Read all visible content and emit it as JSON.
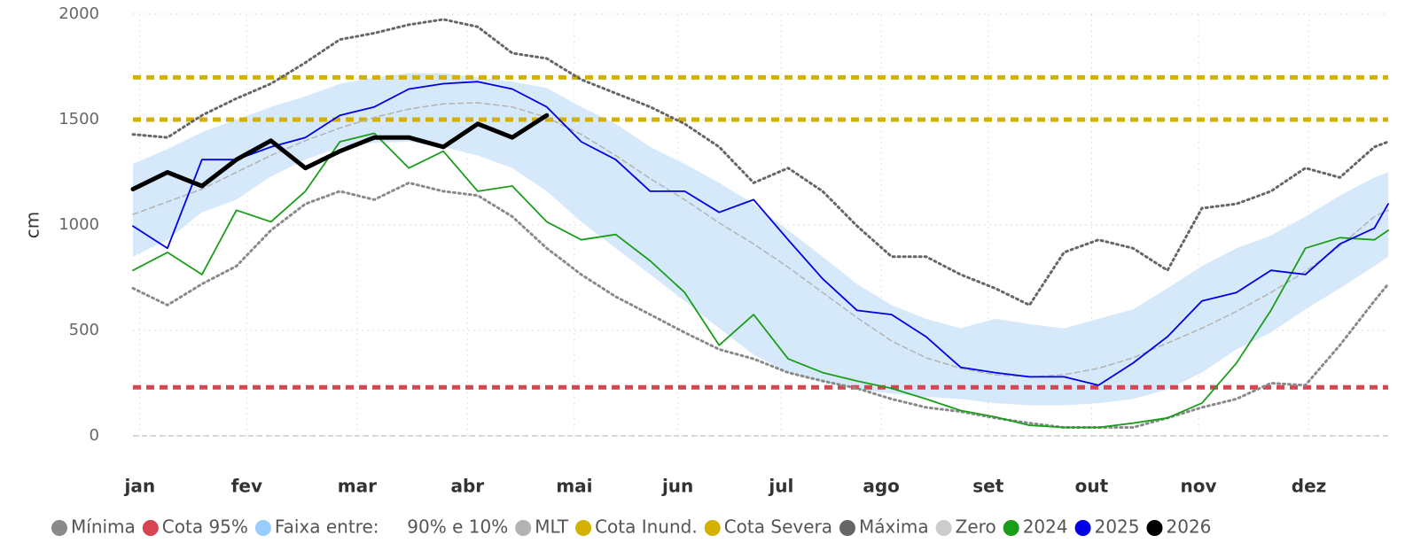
{
  "chart_data": {
    "type": "line",
    "y_label": "cm",
    "xlim": [
      1,
      365
    ],
    "xticks": [
      {
        "value": 3,
        "label": "jan"
      },
      {
        "value": 34,
        "label": "fev"
      },
      {
        "value": 66,
        "label": "mar"
      },
      {
        "value": 98,
        "label": "abr"
      },
      {
        "value": 129,
        "label": "mai"
      },
      {
        "value": 159,
        "label": "jun"
      },
      {
        "value": 189,
        "label": "jul"
      },
      {
        "value": 218,
        "label": "ago"
      },
      {
        "value": 249,
        "label": "set"
      },
      {
        "value": 279,
        "label": "out"
      },
      {
        "value": 310,
        "label": "nov"
      },
      {
        "value": 342,
        "label": "dez"
      }
    ],
    "ylim": [
      0,
      2000
    ],
    "yticks": [
      0,
      500,
      1000,
      1500,
      2000
    ],
    "grid": true,
    "legend": "bottom",
    "x": [
      1,
      11,
      21,
      31,
      41,
      51,
      61,
      71,
      81,
      91,
      101,
      111,
      121,
      131,
      141,
      151,
      161,
      171,
      181,
      191,
      201,
      211,
      221,
      231,
      241,
      251,
      261,
      271,
      281,
      291,
      301,
      311,
      321,
      331,
      341,
      351,
      361,
      365
    ],
    "series": [
      {
        "name": "Mínima",
        "kind": "line",
        "color": "#8a8a8a",
        "style": "dotted",
        "width": 3,
        "values": [
          700,
          620,
          720,
          805,
          975,
          1100,
          1160,
          1120,
          1200,
          1160,
          1140,
          1040,
          890,
          765,
          660,
          575,
          490,
          410,
          365,
          300,
          260,
          225,
          175,
          135,
          115,
          85,
          60,
          40,
          40,
          40,
          85,
          135,
          175,
          250,
          240,
          430,
          640,
          720
        ]
      },
      {
        "name": "Cota 95%",
        "kind": "hline",
        "color": "#d64550",
        "style": "dashed",
        "width": 5,
        "value": 230
      },
      {
        "name": "Faixa entre:     90% e 10%",
        "kind": "band",
        "color": "#99ccff",
        "fill": "#d6e9fb",
        "upper": [
          1290,
          1360,
          1440,
          1500,
          1560,
          1610,
          1670,
          1700,
          1720,
          1720,
          1700,
          1680,
          1650,
          1560,
          1480,
          1370,
          1290,
          1200,
          1100,
          975,
          850,
          720,
          620,
          555,
          510,
          555,
          530,
          510,
          555,
          600,
          700,
          805,
          890,
          950,
          1040,
          1140,
          1225,
          1250
        ],
        "lower": [
          850,
          930,
          1060,
          1120,
          1230,
          1310,
          1370,
          1390,
          1395,
          1370,
          1330,
          1270,
          1160,
          1015,
          890,
          765,
          640,
          510,
          385,
          300,
          260,
          220,
          200,
          185,
          175,
          155,
          145,
          145,
          155,
          175,
          220,
          300,
          410,
          490,
          600,
          700,
          805,
          850
        ]
      },
      {
        "name": "MLT",
        "kind": "line",
        "color": "#b3b3b3",
        "style": "dashed",
        "width": 1.5,
        "values": [
          1050,
          1110,
          1170,
          1250,
          1330,
          1400,
          1460,
          1510,
          1550,
          1575,
          1580,
          1560,
          1510,
          1430,
          1330,
          1220,
          1120,
          1010,
          910,
          800,
          680,
          560,
          450,
          370,
          320,
          290,
          280,
          290,
          320,
          370,
          440,
          510,
          590,
          680,
          780,
          900,
          1040,
          1070
        ]
      },
      {
        "name": "Cota Inund.",
        "kind": "hline",
        "color": "#d4b000",
        "style": "dashed",
        "width": 5,
        "value": 1700
      },
      {
        "name": "Cota Severa",
        "kind": "hline",
        "color": "#d4b000",
        "style": "dashed",
        "width": 5,
        "value": 1500
      },
      {
        "name": "Máxima",
        "kind": "line",
        "color": "#666666",
        "style": "dotted",
        "width": 3,
        "values": [
          1430,
          1415,
          1520,
          1600,
          1670,
          1770,
          1880,
          1910,
          1950,
          1975,
          1940,
          1815,
          1790,
          1690,
          1625,
          1560,
          1480,
          1370,
          1200,
          1270,
          1160,
          995,
          850,
          850,
          765,
          700,
          620,
          870,
          930,
          890,
          785,
          1080,
          1100,
          1160,
          1270,
          1225,
          1370,
          1395
        ]
      },
      {
        "name": "Zero",
        "kind": "hline",
        "color": "#cccccc",
        "style": "dashed",
        "width": 1.5,
        "value": 0
      },
      {
        "name": "2024",
        "kind": "line",
        "color": "#1a9e1a",
        "style": "solid",
        "width": 1.8,
        "values": [
          785,
          870,
          765,
          1070,
          1015,
          1160,
          1395,
          1435,
          1270,
          1350,
          1160,
          1185,
          1015,
          930,
          955,
          830,
          680,
          430,
          575,
          365,
          300,
          260,
          225,
          175,
          120,
          90,
          50,
          40,
          40,
          60,
          85,
          155,
          345,
          595,
          890,
          940,
          930,
          975
        ]
      },
      {
        "name": "2025",
        "kind": "line",
        "color": "#0000e6",
        "style": "solid",
        "width": 1.8,
        "values": [
          995,
          890,
          1310,
          1310,
          1370,
          1415,
          1520,
          1560,
          1645,
          1670,
          1680,
          1645,
          1560,
          1395,
          1310,
          1160,
          1160,
          1060,
          1120,
          930,
          745,
          595,
          575,
          470,
          325,
          300,
          280,
          280,
          240,
          345,
          470,
          640,
          680,
          785,
          765,
          910,
          985,
          1100
        ]
      },
      {
        "name": "2026",
        "kind": "line",
        "color": "#000000",
        "style": "solid",
        "width": 5,
        "values": [
          1170,
          1250,
          1185,
          1310,
          1400,
          1270,
          1350,
          1415,
          1415,
          1370,
          1480,
          1415,
          1520,
          null,
          null,
          null,
          null,
          null,
          null,
          null,
          null,
          null,
          null,
          null,
          null,
          null,
          null,
          null,
          null,
          null,
          null,
          null,
          null,
          null,
          null,
          null,
          null,
          null
        ]
      }
    ]
  }
}
